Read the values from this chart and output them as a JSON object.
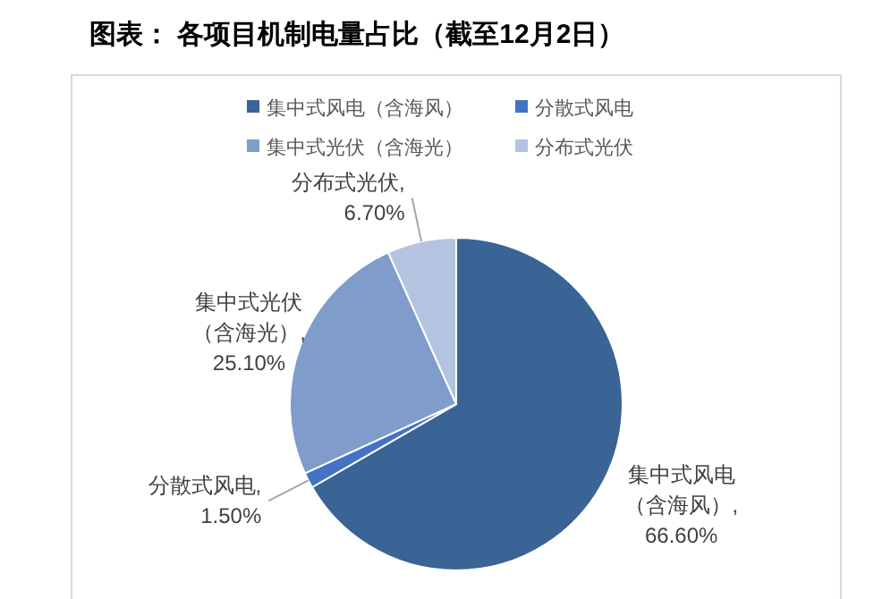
{
  "chart_data": {
    "type": "pie",
    "title": "图表： 各项目机制电量占比（截至12月2日）",
    "categories": [
      "集中式风电（含海风）",
      "分散式风电",
      "集中式光伏（含海光）",
      "分布式光伏"
    ],
    "values": [
      66.6,
      1.5,
      25.1,
      6.7
    ],
    "colors": [
      "#3a6496",
      "#4472c4",
      "#7f9ccb",
      "#b4c3df"
    ],
    "value_labels": [
      "集中式风电（含海风）, 66.60%",
      "分散式风电, 1.50%",
      "集中式光伏（含海光）, 25.10%",
      "分布式光伏, 6.70%"
    ],
    "legend": "top"
  }
}
